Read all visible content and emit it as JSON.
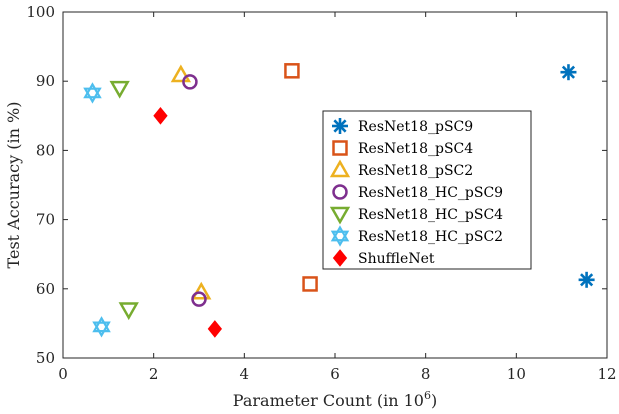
{
  "chart_data": {
    "type": "scatter",
    "title": "",
    "xlabel": "Parameter Count (in 10",
    "xlabel_sup": "6",
    "xlabel_suffix": ")",
    "ylabel": "Test Accuracy (in %)",
    "xlim": [
      0,
      12
    ],
    "ylim": [
      50,
      100
    ],
    "xticks": [
      "0",
      "2",
      "4",
      "6",
      "8",
      "10",
      "12"
    ],
    "yticks": [
      "50",
      "60",
      "70",
      "80",
      "90",
      "100"
    ],
    "grid": false,
    "legend_position": "right-center",
    "series": [
      {
        "name": "ResNet18_pSC9",
        "marker": "asterisk",
        "color": "#0072BD",
        "points": [
          [
            11.15,
            91.3
          ],
          [
            11.55,
            61.3
          ]
        ]
      },
      {
        "name": "ResNet18_pSC4",
        "marker": "square",
        "color": "#D95319",
        "points": [
          [
            5.05,
            91.5
          ],
          [
            5.45,
            60.7
          ]
        ]
      },
      {
        "name": "ResNet18_pSC2",
        "marker": "triangle-up",
        "color": "#EDB120",
        "points": [
          [
            2.6,
            90.9
          ],
          [
            3.05,
            59.5
          ]
        ]
      },
      {
        "name": "ResNet18_HC_pSC9",
        "marker": "circle",
        "color": "#7E2F8E",
        "points": [
          [
            2.8,
            89.9
          ],
          [
            3.0,
            58.5
          ]
        ]
      },
      {
        "name": "ResNet18_HC_pSC4",
        "marker": "triangle-down",
        "color": "#77AC30",
        "points": [
          [
            1.25,
            89.0
          ],
          [
            1.45,
            57.0
          ]
        ]
      },
      {
        "name": "ResNet18_HC_pSC2",
        "marker": "hexagram",
        "color": "#4DBEEE",
        "points": [
          [
            0.65,
            88.3
          ],
          [
            0.85,
            54.5
          ]
        ]
      },
      {
        "name": "ShuffleNet",
        "marker": "diamond",
        "color": "#FF0000",
        "points": [
          [
            2.15,
            85.0
          ],
          [
            3.35,
            54.2
          ]
        ]
      }
    ]
  }
}
